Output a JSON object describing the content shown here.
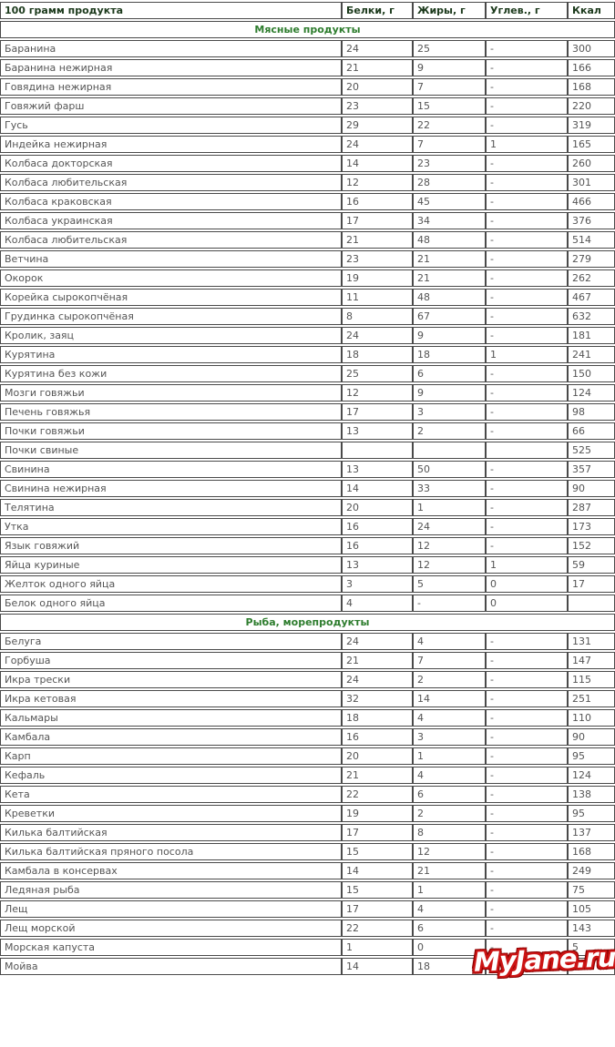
{
  "chart_data": {
    "type": "table",
    "columns": [
      "100 грамм продукта",
      "Белки, г",
      "Жиры, г",
      "Углев., г",
      "Ккал"
    ],
    "sections": [
      {
        "title": "Мясные продукты",
        "rows": [
          [
            "Баранина",
            "24",
            "25",
            "-",
            "300"
          ],
          [
            "Баранина нежирная",
            "21",
            "9",
            "-",
            "166"
          ],
          [
            "Говядина нежирная",
            "20",
            "7",
            "-",
            "168"
          ],
          [
            "Говяжий фарш",
            "23",
            "15",
            "-",
            "220"
          ],
          [
            "Гусь",
            "29",
            "22",
            "-",
            "319"
          ],
          [
            "Индейка нежирная",
            "24",
            "7",
            "1",
            "165"
          ],
          [
            "Колбаса докторская",
            "14",
            "23",
            "-",
            "260"
          ],
          [
            "Колбаса любительская",
            "12",
            "28",
            "-",
            "301"
          ],
          [
            "Колбаса краковская",
            "16",
            "45",
            "-",
            "466"
          ],
          [
            "Колбаса украинская",
            "17",
            "34",
            "-",
            "376"
          ],
          [
            "Колбаса любительская",
            "21",
            "48",
            "-",
            "514"
          ],
          [
            "Ветчина",
            "23",
            "21",
            "-",
            "279"
          ],
          [
            "Окорок",
            "19",
            "21",
            "-",
            "262"
          ],
          [
            "Корейка сырокопчёная",
            "11",
            "48",
            "-",
            "467"
          ],
          [
            "Грудинка сырокопчёная",
            "8",
            "67",
            "-",
            "632"
          ],
          [
            "Кролик, заяц",
            "24",
            "9",
            "-",
            "181"
          ],
          [
            "Курятина",
            "18",
            "18",
            "1",
            "241"
          ],
          [
            "Курятина без кожи",
            "25",
            "6",
            "-",
            "150"
          ],
          [
            "Мозги говяжьи",
            "12",
            "9",
            "-",
            "124"
          ],
          [
            "Печень говяжья",
            "17",
            "3",
            "-",
            "98"
          ],
          [
            "Почки говяжьи",
            "13",
            "2",
            "-",
            "66"
          ],
          [
            "Почки свиные",
            "",
            "",
            "",
            "525"
          ],
          [
            "Свинина",
            "13",
            "50",
            "-",
            "357"
          ],
          [
            "Свинина нежирная",
            "14",
            "33",
            "-",
            "90"
          ],
          [
            "Телятина",
            "20",
            "1",
            "-",
            "287"
          ],
          [
            "Утка",
            "16",
            "24",
            "-",
            "173"
          ],
          [
            "Язык говяжий",
            "16",
            "12",
            "-",
            "152"
          ],
          [
            "Яйца куриные",
            "13",
            "12",
            "1",
            "59"
          ],
          [
            "Желток одного яйца",
            "3",
            "5",
            "0",
            "17"
          ],
          [
            "Белок одного яйца",
            "4",
            "-",
            "0",
            ""
          ]
        ]
      },
      {
        "title": "Рыба, морепродукты",
        "rows": [
          [
            "Белуга",
            "24",
            "4",
            "-",
            "131"
          ],
          [
            "Горбуша",
            "21",
            "7",
            "-",
            "147"
          ],
          [
            "Икра трески",
            "24",
            "2",
            "-",
            "115"
          ],
          [
            "Икра кетовая",
            "32",
            "14",
            "-",
            "251"
          ],
          [
            "Кальмары",
            "18",
            "4",
            "-",
            "110"
          ],
          [
            "Камбала",
            "16",
            "3",
            "-",
            "90"
          ],
          [
            "Карп",
            "20",
            "1",
            "-",
            "95"
          ],
          [
            "Кефаль",
            "21",
            "4",
            "-",
            "124"
          ],
          [
            "Кета",
            "22",
            "6",
            "-",
            "138"
          ],
          [
            "Креветки",
            "19",
            "2",
            "-",
            "95"
          ],
          [
            "Килька балтийская",
            "17",
            "8",
            "-",
            "137"
          ],
          [
            "Килька балтийская пряного посола",
            "15",
            "12",
            "-",
            "168"
          ],
          [
            "Камбала в консервах",
            "14",
            "21",
            "-",
            "249"
          ],
          [
            "Ледяная рыба",
            "15",
            "1",
            "-",
            "75"
          ],
          [
            "Лещ",
            "17",
            "4",
            "-",
            "105"
          ],
          [
            "Лещ морской",
            "22",
            "6",
            "-",
            "143"
          ],
          [
            "Морская капуста",
            "1",
            "0",
            "-",
            "5"
          ],
          [
            "Мойва",
            "14",
            "18",
            "-",
            ""
          ]
        ]
      }
    ]
  },
  "watermark": {
    "text": "MyJane.ru",
    "fill_color": "#ffffff",
    "outline_color": "#cc1414"
  },
  "colors": {
    "header_text": "#1c3a1c",
    "section_text": "#2e7d2e",
    "body_text": "#555555",
    "border": "#4a4a4a",
    "background": "#ffffff"
  }
}
